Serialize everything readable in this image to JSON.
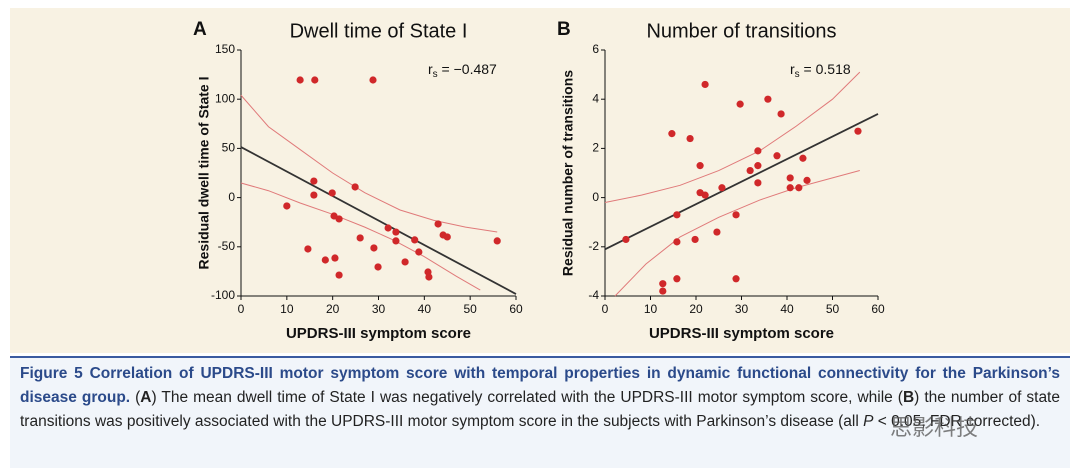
{
  "chart_data": [
    {
      "type": "scatter",
      "panel": "A",
      "title": "Dwell time of State I",
      "xlabel": "UPDRS-III symptom score",
      "ylabel": "Residual dwell time of State I",
      "annotation": "r",
      "annotation_sub": "s",
      "annotation_text": " = −0.487",
      "xlim": [
        0,
        60
      ],
      "xticks": [
        0,
        10,
        20,
        30,
        40,
        50,
        60
      ],
      "ylim": [
        -100,
        150
      ],
      "yticks": [
        150,
        100,
        50,
        0,
        -50,
        -100
      ],
      "point_color": "#d0282a",
      "fit_color": "#333333",
      "ci_color": "#e07a7a",
      "points": {
        "x": [
          12.9,
          16.1,
          28.8,
          10,
          15.9,
          15.9,
          19.9,
          14.6,
          18.4,
          20.5,
          21.4,
          20.3,
          21.4,
          24.9,
          26,
          29,
          29.9,
          32.1,
          33.8,
          33.8,
          35.8,
          37.9,
          38.8,
          40.8,
          41,
          43,
          44.1,
          45,
          55.9
        ],
        "y": [
          119.5,
          119.5,
          119.5,
          -8.5,
          16.8,
          2.6,
          4.7,
          -52.2,
          -63.4,
          -61.4,
          -78.7,
          -18.7,
          -21.7,
          10.8,
          -41,
          -51.2,
          -70.5,
          -30.9,
          -35,
          -44,
          -65.4,
          -43,
          -55.3,
          -75.6,
          -80.7,
          -26.8,
          -38,
          -40,
          -44
        ]
      },
      "fit_line": {
        "x": [
          0,
          60
        ],
        "y": [
          51.4,
          -98
        ]
      },
      "ci_upper": {
        "x": [
          0,
          6,
          12.9,
          20,
          27,
          34.7,
          42,
          49,
          55.9
        ],
        "y": [
          104,
          72,
          48.8,
          25,
          5,
          -12.6,
          -23,
          -30,
          -35
        ]
      },
      "ci_lower": {
        "x": [
          0,
          6,
          12.9,
          20,
          27,
          33.2,
          40,
          47,
          52.2
        ],
        "y": [
          14.8,
          7,
          -5.5,
          -17,
          -30,
          -43,
          -60,
          -80,
          -94
        ]
      }
    },
    {
      "type": "scatter",
      "panel": "B",
      "title": "Number of transitions",
      "xlabel": "UPDRS-III symptom score",
      "ylabel": "Residual number of transitions",
      "annotation": "r",
      "annotation_sub": "s",
      "annotation_text": " = 0.518",
      "xlim": [
        0,
        60
      ],
      "xticks": [
        0,
        10,
        20,
        30,
        40,
        50,
        60
      ],
      "ylim": [
        -4,
        6
      ],
      "yticks": [
        6,
        4,
        2,
        0,
        -2,
        -4
      ],
      "point_color": "#d0282a",
      "fit_color": "#333333",
      "ci_color": "#e07a7a",
      "points": {
        "x": [
          4.6,
          12.7,
          12.7,
          14.7,
          15.8,
          15.8,
          15.8,
          18.7,
          19.8,
          20.9,
          20.9,
          22,
          22,
          24.6,
          25.7,
          28.8,
          28.8,
          29.7,
          31.9,
          33.6,
          33.6,
          33.6,
          35.8,
          37.8,
          38.7,
          40.7,
          40.7,
          42.6,
          43.5,
          44.4,
          55.6
        ],
        "y": [
          -1.7,
          -3.5,
          -3.8,
          2.6,
          -0.7,
          -1.8,
          -3.3,
          2.4,
          -1.7,
          1.3,
          0.2,
          0.1,
          4.6,
          -1.4,
          0.4,
          -0.7,
          -3.3,
          3.8,
          1.1,
          1.9,
          1.3,
          0.6,
          4,
          1.7,
          3.4,
          0.8,
          0.4,
          0.4,
          1.6,
          0.7,
          2.7
        ]
      },
      "fit_line": {
        "x": [
          0,
          60
        ],
        "y": [
          -2.1,
          3.4
        ]
      },
      "ci_upper": {
        "x": [
          0,
          8,
          16.5,
          25,
          34,
          42,
          50,
          56
        ],
        "y": [
          -0.2,
          0.1,
          0.5,
          1.1,
          1.9,
          2.9,
          4,
          5.1
        ]
      },
      "ci_lower": {
        "x": [
          2.2,
          9,
          16.5,
          25,
          34,
          42,
          50,
          56
        ],
        "y": [
          -4,
          -2.7,
          -1.6,
          -0.8,
          -0.1,
          0.4,
          0.8,
          1.1
        ]
      }
    }
  ],
  "caption": [
    {
      "style": "title",
      "text": "Figure 5  Correlation of UPDRS-III motor symptom score with temporal properties in dynamic functional connectivity for the Parkinson’s disease group."
    },
    {
      "style": "plain",
      "text": " ("
    },
    {
      "style": "bold",
      "text": "A"
    },
    {
      "style": "plain",
      "text": ") The mean dwell time of State I was negatively correlated with the UPDRS-III motor symptom score, while ("
    },
    {
      "style": "bold",
      "text": "B"
    },
    {
      "style": "plain",
      "text": ") the number of state transitions was positively associated with the UPDRS-III motor symptom score in the subjects with Parkinson’s disease (all "
    },
    {
      "style": "italic",
      "text": "P"
    },
    {
      "style": "plain",
      "text": " < 0.05, FDR corrected)."
    }
  ],
  "watermark": "思影科技"
}
